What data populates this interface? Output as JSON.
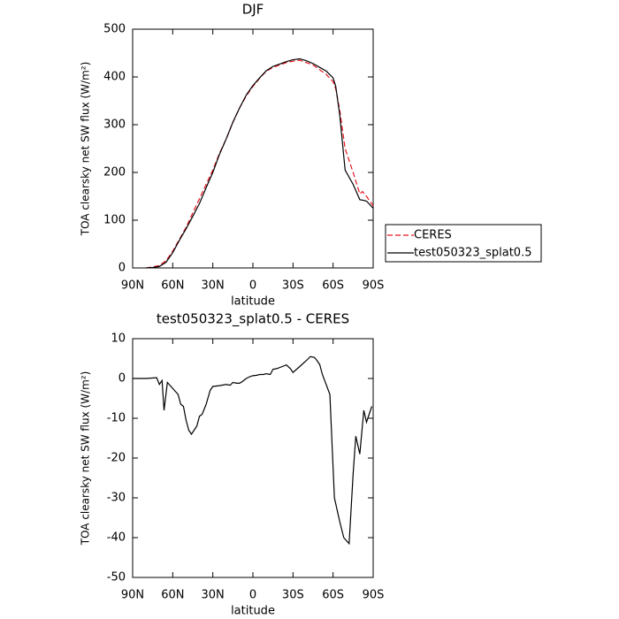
{
  "chart_data": [
    {
      "type": "line",
      "title": "DJF",
      "xlabel": "latitude",
      "ylabel": "TOA clearsky net SW flux (W/m²)",
      "xlim": [
        90,
        -90
      ],
      "xticks": [
        {
          "value": 90,
          "label": "90N"
        },
        {
          "value": 60,
          "label": "60N"
        },
        {
          "value": 30,
          "label": "30N"
        },
        0,
        {
          "value": -30,
          "label": "30S"
        },
        {
          "value": -60,
          "label": "60S"
        },
        {
          "value": -90,
          "label": "90S"
        }
      ],
      "ylim": [
        0,
        500
      ],
      "yticks": [
        0,
        100,
        200,
        300,
        400,
        500
      ],
      "legend": "right",
      "x": [
        80,
        75,
        70,
        65,
        60,
        55,
        50,
        45,
        40,
        35,
        30,
        25,
        20,
        15,
        10,
        5,
        0,
        -5,
        -10,
        -15,
        -20,
        -25,
        -30,
        -35,
        -40,
        -45,
        -50,
        -55,
        -60,
        -62,
        -65,
        -69,
        -75,
        -80,
        -82,
        -85,
        -90
      ],
      "series": [
        {
          "name": "CERES",
          "color": "#e8141e",
          "dash": true,
          "values": [
            0,
            2,
            5,
            15,
            35,
            60,
            85,
            115,
            145,
            175,
            205,
            240,
            270,
            305,
            335,
            360,
            380,
            397,
            412,
            420,
            425,
            430,
            433,
            435,
            430,
            425,
            415,
            405,
            390,
            375,
            330,
            250,
            200,
            155,
            160,
            150,
            130
          ]
        },
        {
          "name": "test050323_splat0.5",
          "color": "#000000",
          "dash": false,
          "values": [
            0,
            1,
            3,
            12,
            32,
            58,
            82,
            108,
            135,
            168,
            200,
            238,
            270,
            305,
            335,
            362,
            382,
            398,
            413,
            422,
            427,
            432,
            436,
            438,
            434,
            428,
            420,
            412,
            398,
            380,
            320,
            205,
            175,
            143,
            142,
            140,
            125
          ]
        }
      ]
    },
    {
      "type": "line",
      "title": "test050323_splat0.5 - CERES",
      "xlabel": "latitude",
      "ylabel": "TOA clearsky net SW flux (W/m²)",
      "xlim": [
        90,
        -90
      ],
      "xticks": [
        {
          "value": 90,
          "label": "90N"
        },
        {
          "value": 60,
          "label": "60N"
        },
        {
          "value": 30,
          "label": "30N"
        },
        0,
        {
          "value": -30,
          "label": "30S"
        },
        {
          "value": -60,
          "label": "60S"
        },
        {
          "value": -90,
          "label": "90S"
        }
      ],
      "ylim": [
        -50,
        10
      ],
      "yticks": [
        -50,
        -40,
        -30,
        -20,
        -10,
        0,
        10
      ],
      "x": [
        90,
        80,
        72,
        70,
        68,
        66.5,
        64,
        60,
        56,
        54,
        52,
        50,
        48,
        46,
        44,
        42,
        40,
        38,
        35,
        32,
        30,
        25,
        20,
        17,
        15,
        12,
        10,
        8,
        5,
        2,
        0,
        -3,
        -5,
        -8,
        -10,
        -13,
        -15,
        -18,
        -22,
        -25,
        -28,
        -30,
        -35,
        -40,
        -43,
        -46,
        -48,
        -50,
        -52,
        -57.6,
        -61,
        -65,
        -68,
        -72,
        -75,
        -77,
        -80,
        -83,
        -85,
        -89
      ],
      "series": [
        {
          "color": "#000000",
          "dash": false,
          "values": [
            0,
            0,
            0.2,
            -1.5,
            -0.5,
            -8,
            -1,
            -2.5,
            -4,
            -6.5,
            -7,
            -10.5,
            -13,
            -14,
            -13,
            -12,
            -9.5,
            -9,
            -6.5,
            -3,
            -2,
            -1.8,
            -1.5,
            -1.7,
            -1,
            -1.2,
            -1.2,
            -0.8,
            0,
            0.5,
            0.7,
            0.8,
            1,
            1,
            1.2,
            1,
            2.3,
            2.5,
            3,
            3.4,
            2.5,
            1.5,
            3,
            4.5,
            5.5,
            5.3,
            4.5,
            3.5,
            1,
            -4,
            -30,
            -36,
            -40,
            -41.5,
            -24,
            -14.5,
            -19,
            -8,
            -11,
            -7
          ]
        }
      ]
    }
  ]
}
